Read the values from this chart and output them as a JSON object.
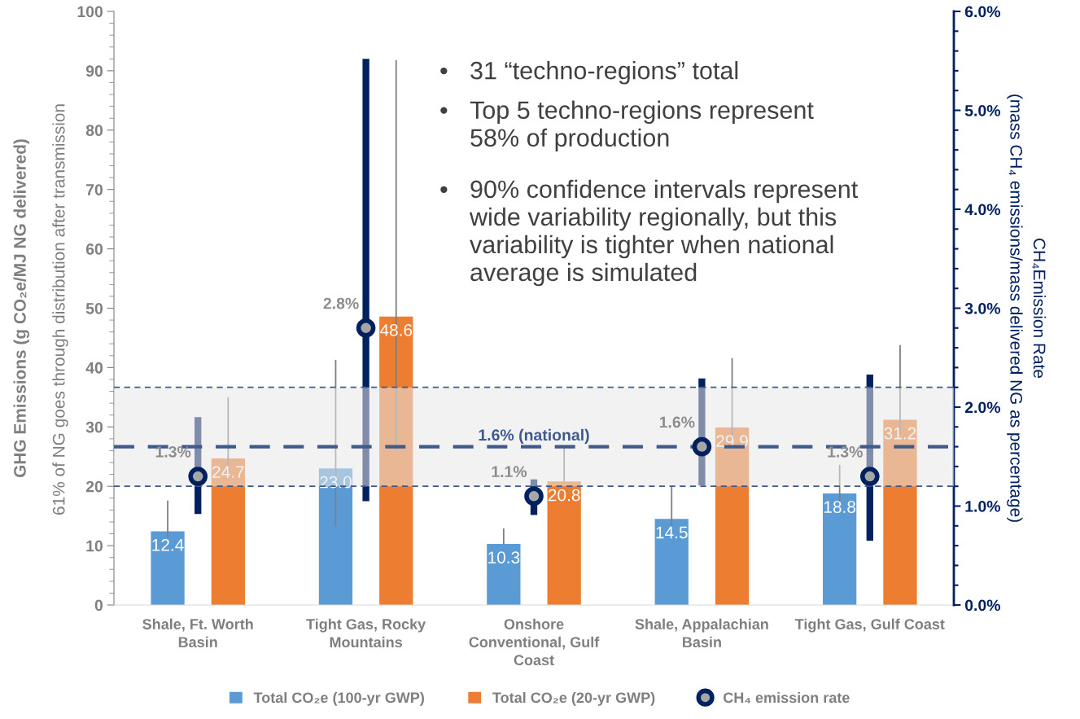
{
  "chart_data": {
    "type": "bar",
    "categories": [
      "Shale, Ft. Worth Basin",
      "Tight Gas, Rocky Mountains",
      "Onshore Conventional, Gulf Coast",
      "Shale, Appalachian Basin",
      "Tight Gas, Gulf Coast"
    ],
    "series": [
      {
        "name": "Total CO₂e (100-yr GWP)",
        "color": "#5b9bd5",
        "values": [
          12.4,
          23.0,
          10.3,
          14.5,
          18.8
        ],
        "errors": [
          [
            11.4,
            17.6
          ],
          [
            13.3,
            41.3
          ],
          [
            10.3,
            12.9
          ],
          [
            13.3,
            20.0
          ],
          [
            16.7,
            23.6
          ]
        ],
        "value_labels": [
          "12.4",
          "23.0",
          "10.3",
          "14.5",
          "18.8"
        ]
      },
      {
        "name": "Total CO₂e (20-yr GWP)",
        "color": "#ed7d31",
        "values": [
          24.7,
          48.6,
          20.8,
          29.9,
          31.2
        ],
        "errors": [
          [
            22.4,
            35.0
          ],
          [
            25.9,
            91.8
          ],
          [
            20.8,
            26.7
          ],
          [
            27.6,
            41.6
          ],
          [
            28.8,
            43.8
          ]
        ],
        "value_labels": [
          "24.7",
          "48.6",
          "20.8",
          "29.9",
          "31.2"
        ]
      },
      {
        "name": "CH₄ emission rate",
        "type": "scatter",
        "axis": "y2",
        "color": "#002060",
        "marker": "circle",
        "values": [
          1.3,
          2.8,
          1.1,
          1.6,
          1.3
        ],
        "errors": [
          [
            0.92,
            1.9
          ],
          [
            1.05,
            5.52
          ],
          [
            0.91,
            1.27
          ],
          [
            1.21,
            2.29
          ],
          [
            0.65,
            2.33
          ]
        ],
        "value_labels": [
          "1.3%",
          "2.8%",
          "1.1%",
          "1.6%",
          "1.3%"
        ]
      }
    ],
    "ylabel": "GHG Emissions (g CO₂e/MJ NG delivered)",
    "y2label": "CH₄Emission Rate\n(mass CH₄ emissions/mass delivered NG as percentage)",
    "ylim": [
      0,
      100
    ],
    "yticks": [
      0,
      10,
      20,
      30,
      40,
      50,
      60,
      70,
      80,
      90,
      100
    ],
    "y2lim": [
      0,
      6
    ],
    "y2ticks": [
      {
        "value": 0,
        "label": "0.0%"
      },
      {
        "value": 1,
        "label": "1.0%"
      },
      {
        "value": 2,
        "label": "2.0%"
      },
      {
        "value": 3,
        "label": "3.0%"
      },
      {
        "value": 4,
        "label": "4.0%"
      },
      {
        "value": 5,
        "label": "5.0%"
      },
      {
        "value": 6,
        "label": "6.0%"
      }
    ],
    "ref_lines": [
      {
        "axis": "y2",
        "value": 1.6,
        "label": "1.6% (national)",
        "color": "#3e5a8c",
        "line_style": "dashed"
      },
      {
        "axis": "y2",
        "value": 1.2,
        "color": "#3e5a8c",
        "line_style": "dashed"
      },
      {
        "axis": "y2",
        "value": 2.2,
        "color": "#3e5a8c",
        "line_style": "dashed"
      }
    ],
    "bands": [
      {
        "axis": "y2",
        "from": 1.2,
        "to": 2.2,
        "color": "#e8e8e8"
      }
    ],
    "annotations": [
      "61% of NG goes through distribution after transmission",
      "• 31 “techno-regions” total",
      "• Top 5 techno-regions represent\n58% of production",
      "• 90% confidence intervals represent\nwide variability regionally, but this\nvariability is tighter when national\naverage is simulated"
    ],
    "legend": "bottom",
    "grid": false
  }
}
